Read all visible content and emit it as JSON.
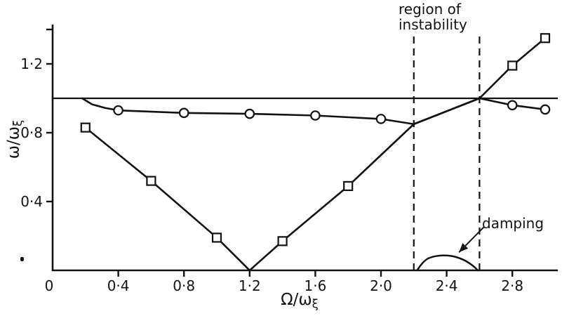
{
  "figure": {
    "background": "#ffffff",
    "ink_color": "#121212",
    "region_label": "region of\ninstability",
    "damping_label": "damping",
    "x_axis_label": {
      "main": "Ω/ω",
      "sub": "ξ"
    },
    "y_axis_label": {
      "main": "ω/ω",
      "sub": "ξ"
    }
  },
  "chart_data": {
    "type": "line",
    "title": "",
    "xlabel": "Ω/ω_ξ",
    "ylabel": "ω/ω_ξ",
    "xlim": [
      0,
      3.08
    ],
    "ylim": [
      0,
      1.43
    ],
    "grid": false,
    "legend": false,
    "origin_label": "0",
    "x_ticks": [
      0.4,
      0.8,
      1.2,
      1.6,
      2.0,
      2.4,
      2.8
    ],
    "x_tick_labels": [
      "0·4",
      "0·8",
      "1·2",
      "1·6",
      "2·0",
      "2·4",
      "2·8"
    ],
    "y_ticks": [
      0.4,
      0.8,
      1.2
    ],
    "y_tick_labels": [
      "0·4",
      "0·8",
      "1·2"
    ],
    "unlabeled_y_ticks": [
      1.4
    ],
    "reference_line_y": 1.0,
    "instability_region_x": [
      2.2,
      2.6
    ],
    "series": [
      {
        "name": "coupled frequency upper branch (circles)",
        "marker": "circle",
        "smooth": false,
        "points": [
          [
            0.18,
            1.0
          ],
          [
            0.24,
            0.965
          ],
          [
            0.32,
            0.944
          ],
          [
            0.4,
            0.93
          ],
          [
            0.8,
            0.915
          ],
          [
            1.2,
            0.91
          ],
          [
            1.6,
            0.9
          ],
          [
            2.0,
            0.88
          ],
          [
            2.2,
            0.85
          ],
          [
            2.6,
            1.0
          ],
          [
            2.8,
            0.96
          ],
          [
            3.0,
            0.935
          ]
        ],
        "marker_points": [
          [
            0.4,
            0.93
          ],
          [
            0.8,
            0.915
          ],
          [
            1.2,
            0.91
          ],
          [
            1.6,
            0.9
          ],
          [
            2.0,
            0.88
          ],
          [
            2.8,
            0.96
          ],
          [
            3.0,
            0.935
          ]
        ]
      },
      {
        "name": "coupled frequency lower branch (squares)",
        "marker": "square",
        "smooth": false,
        "points": [
          [
            0.2,
            0.83
          ],
          [
            0.6,
            0.52
          ],
          [
            1.0,
            0.19
          ],
          [
            1.2,
            0.0
          ],
          [
            1.4,
            0.17
          ],
          [
            1.8,
            0.49
          ],
          [
            2.2,
            0.85
          ],
          [
            2.6,
            1.0
          ],
          [
            2.8,
            1.19
          ],
          [
            3.0,
            1.35
          ]
        ],
        "marker_points": [
          [
            0.2,
            0.83
          ],
          [
            0.6,
            0.52
          ],
          [
            1.0,
            0.19
          ],
          [
            1.4,
            0.17
          ],
          [
            1.8,
            0.49
          ],
          [
            2.8,
            1.19
          ],
          [
            3.0,
            1.35
          ]
        ]
      },
      {
        "name": "damping",
        "marker": "none",
        "smooth": true,
        "points": [
          [
            2.22,
            0.0
          ],
          [
            2.26,
            0.06
          ],
          [
            2.33,
            0.085
          ],
          [
            2.42,
            0.088
          ],
          [
            2.5,
            0.065
          ],
          [
            2.56,
            0.028
          ],
          [
            2.59,
            0.0
          ]
        ],
        "marker_points": []
      }
    ],
    "damping_arrow": {
      "from": [
        2.63,
        0.255
      ],
      "to": [
        2.475,
        0.105
      ]
    }
  }
}
